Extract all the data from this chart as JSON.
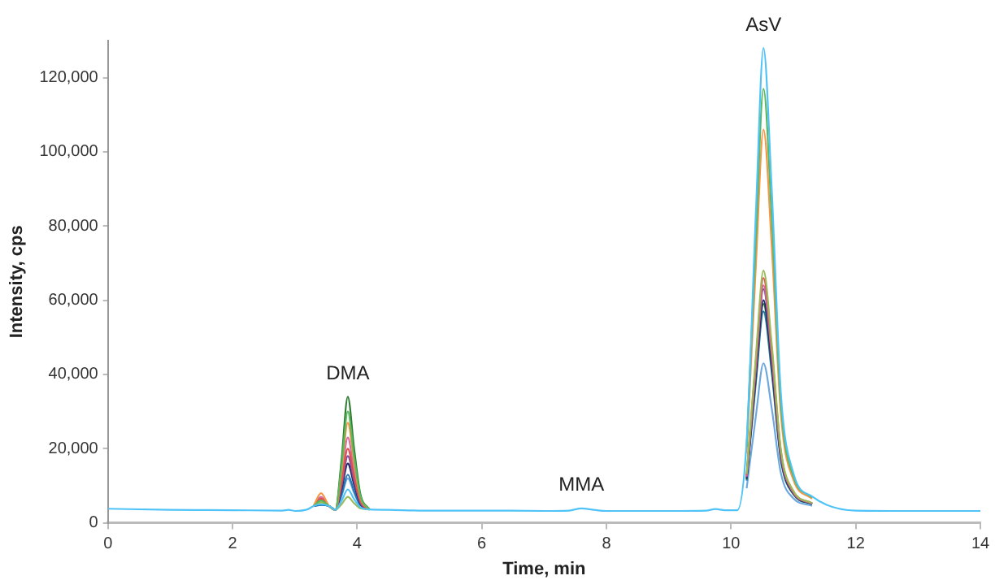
{
  "chart_data": {
    "type": "line",
    "xlabel": "Time, min",
    "ylabel": "Intensity, cps",
    "x": [
      0,
      1,
      2,
      2.8,
      2.9,
      3.0,
      3.2,
      3.3,
      3.42,
      3.55,
      3.65,
      3.75,
      3.85,
      3.95,
      4.05,
      4.2,
      4.5,
      5,
      6,
      7,
      7.4,
      7.6,
      7.8,
      8,
      9,
      9.6,
      9.75,
      9.9,
      10.1,
      10.25,
      10.4,
      10.52,
      10.65,
      10.8,
      11.0,
      11.3,
      12,
      13,
      14
    ],
    "series": [
      {
        "color": "#4fc3f7",
        "values": [
          3800,
          3500,
          3400,
          3300,
          3500,
          3200,
          3600,
          4500,
          5000,
          4500,
          3500,
          5900,
          9000,
          6400,
          4200,
          3600,
          3500,
          3300,
          3300,
          3200,
          3300,
          3900,
          3500,
          3200,
          3200,
          3300,
          3700,
          3400,
          3400,
          22100,
          84400,
          128000,
          90600,
          34600,
          13400,
          7100,
          3300,
          3200,
          3200
        ]
      },
      {
        "color": "#5cb85c",
        "values": [
          null,
          null,
          null,
          null,
          null,
          null,
          null,
          4500,
          6000,
          4500,
          3500,
          15300,
          30000,
          18000,
          7300,
          3600,
          null,
          null,
          null,
          null,
          null,
          null,
          null,
          null,
          null,
          null,
          null,
          null,
          null,
          20400,
          77200,
          117000,
          82900,
          31800,
          12500,
          6800,
          null,
          null,
          null
        ]
      },
      {
        "color": "#f79646",
        "values": [
          null,
          null,
          null,
          null,
          null,
          null,
          null,
          4500,
          8000,
          4500,
          3500,
          14000,
          27000,
          16300,
          6900,
          3600,
          null,
          null,
          null,
          null,
          null,
          null,
          null,
          null,
          null,
          null,
          null,
          null,
          null,
          18800,
          70100,
          106000,
          75200,
          29100,
          11600,
          6500,
          null,
          null,
          null
        ]
      },
      {
        "color": "#9bbb59",
        "values": [
          null,
          null,
          null,
          null,
          null,
          null,
          null,
          4500,
          5500,
          4500,
          3500,
          5000,
          7000,
          5300,
          3900,
          3600,
          null,
          null,
          null,
          null,
          null,
          null,
          null,
          null,
          null,
          null,
          null,
          null,
          null,
          13100,
          45400,
          68000,
          48600,
          19600,
          8600,
          5300,
          null,
          null,
          null
        ]
      },
      {
        "color": "#e05050",
        "values": [
          null,
          null,
          null,
          null,
          null,
          null,
          null,
          4500,
          6500,
          4500,
          3500,
          10800,
          20000,
          12500,
          5800,
          3600,
          null,
          null,
          null,
          null,
          null,
          null,
          null,
          null,
          null,
          null,
          null,
          null,
          null,
          12800,
          44100,
          66000,
          47200,
          19100,
          8400,
          5300,
          null,
          null,
          null
        ]
      },
      {
        "color": "#d36ba9",
        "values": [
          null,
          null,
          null,
          null,
          null,
          null,
          null,
          4500,
          7000,
          4500,
          3500,
          12200,
          23000,
          14100,
          6300,
          3600,
          null,
          null,
          null,
          null,
          null,
          null,
          null,
          null,
          null,
          null,
          null,
          null,
          null,
          12500,
          42800,
          64000,
          45800,
          18600,
          8200,
          5200,
          null,
          null,
          null
        ]
      },
      {
        "color": "#7b4fa0",
        "values": [
          null,
          null,
          null,
          null,
          null,
          null,
          null,
          null,
          null,
          4500,
          3500,
          9900,
          18000,
          11400,
          5500,
          3600,
          null,
          null,
          null,
          null,
          null,
          null,
          null,
          null,
          null,
          null,
          null,
          null,
          null,
          12300,
          42100,
          63000,
          45100,
          18300,
          8200,
          5200,
          null,
          null,
          null
        ]
      },
      {
        "color": "#1f2a6b",
        "values": [
          null,
          null,
          null,
          null,
          null,
          null,
          null,
          4500,
          5000,
          4500,
          3500,
          9000,
          16000,
          10300,
          5200,
          3600,
          null,
          null,
          null,
          null,
          null,
          null,
          null,
          null,
          null,
          null,
          null,
          null,
          null,
          11900,
          40200,
          60000,
          43000,
          17600,
          7900,
          5100,
          null,
          null,
          null
        ]
      },
      {
        "color": "#2e7d32",
        "values": [
          null,
          null,
          null,
          null,
          null,
          null,
          null,
          4500,
          6000,
          4500,
          3500,
          17100,
          34000,
          20200,
          7900,
          3600,
          null,
          null,
          null,
          null,
          null,
          null,
          null,
          null,
          null,
          null,
          null,
          null,
          null,
          11700,
          39500,
          59000,
          42300,
          17300,
          7800,
          5100,
          null,
          null,
          null
        ]
      },
      {
        "color": "#1f77b4",
        "values": [
          null,
          null,
          null,
          null,
          null,
          null,
          null,
          4500,
          4800,
          4500,
          3500,
          7700,
          13000,
          8600,
          4800,
          3600,
          null,
          null,
          null,
          null,
          null,
          null,
          null,
          null,
          null,
          null,
          null,
          null,
          null,
          11400,
          38200,
          57000,
          40900,
          16800,
          7700,
          5000,
          null,
          null,
          null
        ]
      },
      {
        "color": "#6fa8dc",
        "values": [
          null,
          null,
          null,
          null,
          null,
          null,
          null,
          4500,
          4800,
          4500,
          3500,
          7200,
          12000,
          8100,
          4600,
          3600,
          null,
          null,
          null,
          null,
          null,
          null,
          null,
          null,
          null,
          null,
          null,
          null,
          null,
          9300,
          29100,
          43000,
          31100,
          13300,
          6600,
          4600,
          null,
          null,
          null
        ]
      }
    ],
    "xlim": [
      0,
      14
    ],
    "xticks": [
      0,
      2,
      4,
      6,
      8,
      10,
      12,
      14
    ],
    "ylim": [
      0,
      130000
    ],
    "yticks": [
      {
        "value": 0,
        "label": "0"
      },
      {
        "value": 20000,
        "label": "20,000"
      },
      {
        "value": 40000,
        "label": "40,000"
      },
      {
        "value": 60000,
        "label": "60,000"
      },
      {
        "value": 80000,
        "label": "80,000"
      },
      {
        "value": 100000,
        "label": "100,000"
      },
      {
        "value": 120000,
        "label": "120,000"
      }
    ],
    "annotations": [
      {
        "text": "DMA",
        "x": 3.85,
        "y": 34000
      },
      {
        "text": "MMA",
        "x": 7.6,
        "y": 3900
      },
      {
        "text": "AsV",
        "x": 10.52,
        "y": 128000
      }
    ],
    "grid": false,
    "legend": false,
    "marker": "none",
    "line_style": "solid"
  }
}
